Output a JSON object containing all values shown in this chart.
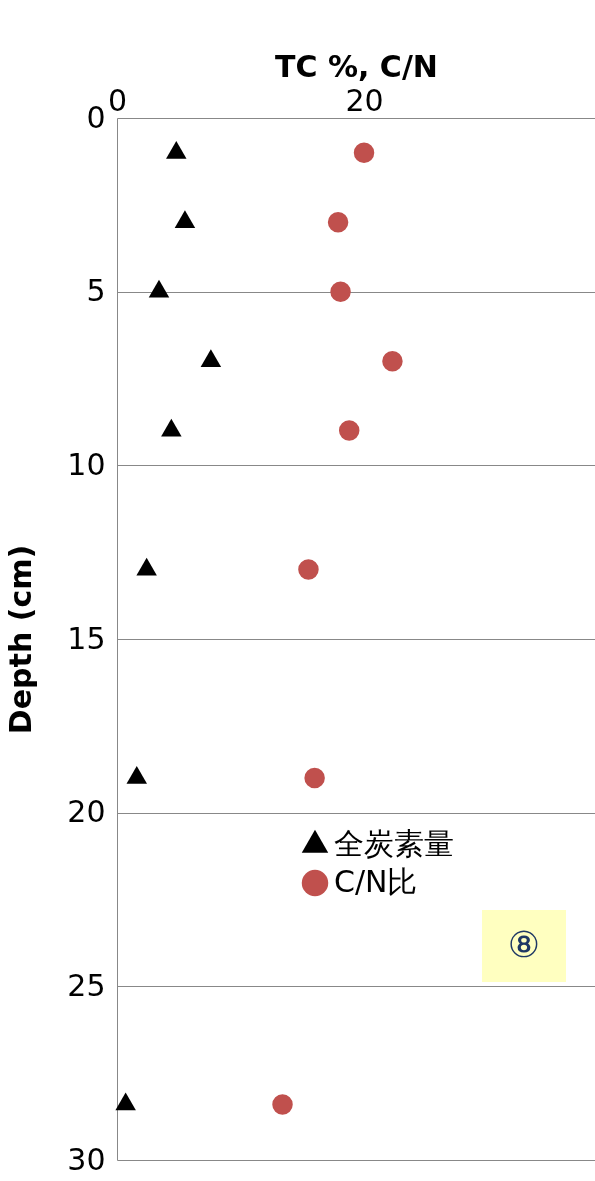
{
  "chart_data": {
    "type": "scatter",
    "xlabel": "TC %, C/N",
    "ylabel": "Depth (cm)",
    "xlim": [
      0,
      38.7
    ],
    "xticks": [
      0,
      20
    ],
    "ylim": [
      30,
      0
    ],
    "yticks": [
      0,
      5,
      10,
      15,
      20,
      25,
      30
    ],
    "grid": "y",
    "legend": "bottom",
    "series": [
      {
        "name": "全炭素量",
        "color": "#000000",
        "marker": "triangle",
        "x": [
          4.8,
          5.5,
          3.4,
          7.6,
          4.4,
          2.4,
          1.6,
          0.7
        ],
        "values": [
          1,
          3,
          5,
          7,
          9,
          13,
          19,
          28.4
        ]
      },
      {
        "name": "C/N比",
        "color": "#c0504d",
        "marker": "circle",
        "x": [
          20.0,
          17.9,
          18.1,
          22.3,
          18.8,
          15.5,
          16.0,
          13.4
        ],
        "values": [
          1,
          3,
          5,
          7,
          9,
          13,
          19,
          28.4
        ]
      }
    ],
    "annotations": [
      "⑧"
    ]
  }
}
